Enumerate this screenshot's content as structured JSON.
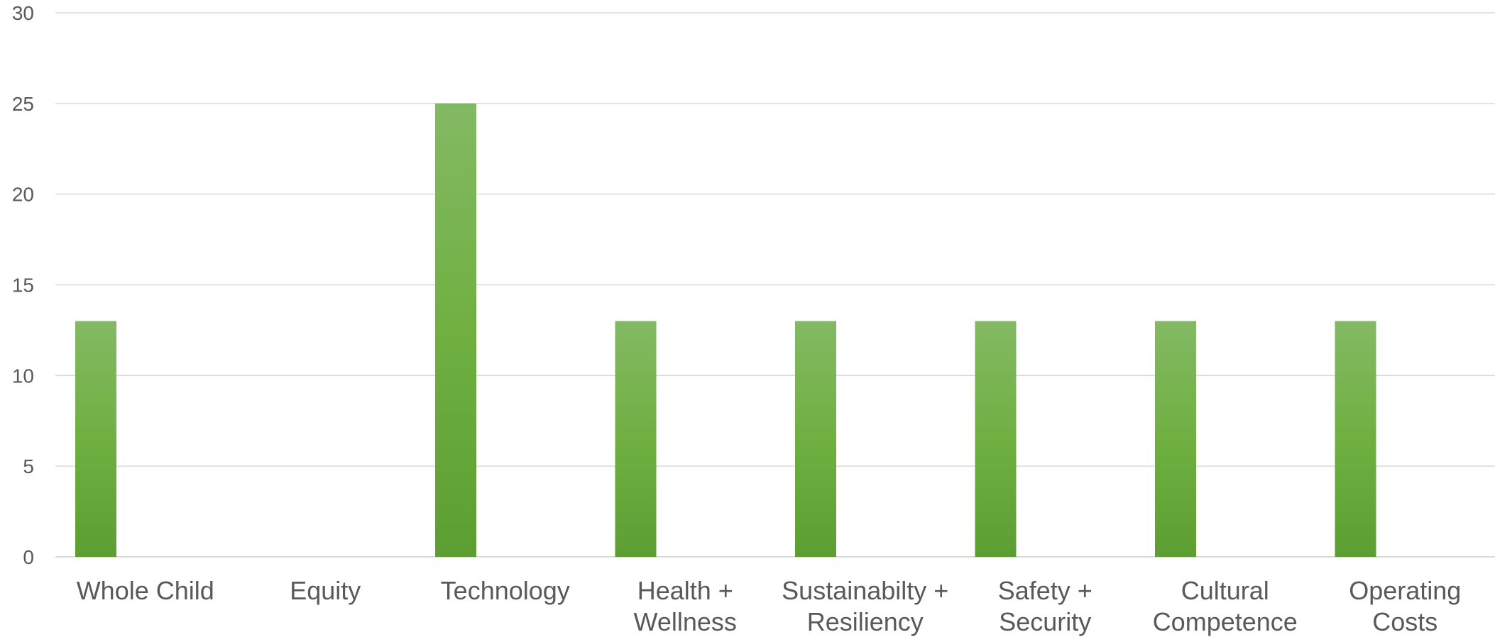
{
  "chart_data": {
    "type": "bar",
    "title": "",
    "xlabel": "",
    "ylabel": "",
    "categories": [
      "Whole Child",
      "Equity",
      "Technology",
      "Health + Wellness",
      "Sustainabilty + Resiliency",
      "Safety + Security",
      "Cultural Competence",
      "Operating Costs"
    ],
    "category_lines": [
      [
        "Whole Child"
      ],
      [
        "Equity"
      ],
      [
        "Technology"
      ],
      [
        "Health +",
        "Wellness"
      ],
      [
        "Sustainabilty +",
        "Resiliency"
      ],
      [
        "Safety +",
        "Security"
      ],
      [
        "Cultural",
        "Competence"
      ],
      [
        "Operating",
        "Costs"
      ]
    ],
    "series": [
      {
        "values": [
          13,
          0,
          25,
          13,
          13,
          13,
          13,
          13
        ]
      }
    ],
    "ylim": [
      0,
      30
    ],
    "yticks": [
      0,
      5,
      10,
      15,
      20,
      25,
      30
    ],
    "grid": true,
    "legend": "none",
    "colors": {
      "bar_top": "#84b964",
      "bar_mid": "#6fb041",
      "bar_bottom": "#5c9e32",
      "grid": "#d9d9d9",
      "axis": "#d9d9d9",
      "text": "#595959"
    }
  }
}
